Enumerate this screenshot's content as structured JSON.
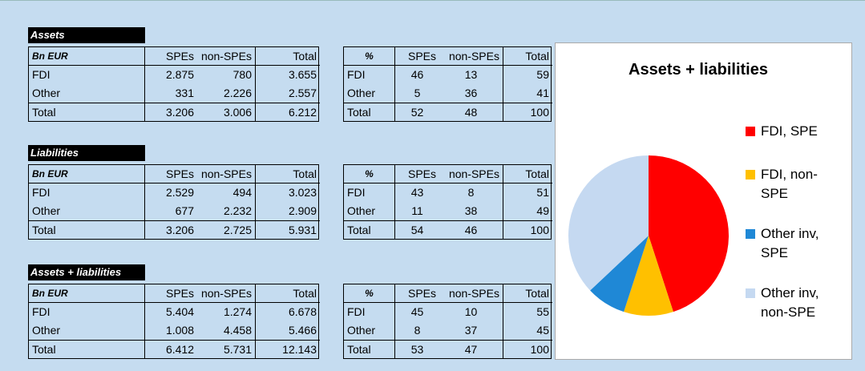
{
  "blocks": [
    {
      "title": "Assets",
      "left": {
        "header": [
          "Bn EUR",
          "SPEs",
          "non-SPEs",
          "Total"
        ],
        "rows": [
          [
            "FDI",
            "2.875",
            "780",
            "3.655"
          ],
          [
            "Other",
            "331",
            "2.226",
            "2.557"
          ],
          [
            "Total",
            "3.206",
            "3.006",
            "6.212"
          ]
        ]
      },
      "right": {
        "header": [
          "%",
          "SPEs",
          "non-SPEs",
          "Total"
        ],
        "rows": [
          [
            "FDI",
            46,
            13,
            59
          ],
          [
            "Other",
            5,
            36,
            41
          ],
          [
            "Total",
            52,
            48,
            100
          ]
        ]
      }
    },
    {
      "title": "Liabilities",
      "left": {
        "header": [
          "Bn EUR",
          "SPEs",
          "non-SPEs",
          "Total"
        ],
        "rows": [
          [
            "FDI",
            "2.529",
            "494",
            "3.023"
          ],
          [
            "Other",
            "677",
            "2.232",
            "2.909"
          ],
          [
            "Total",
            "3.206",
            "2.725",
            "5.931"
          ]
        ]
      },
      "right": {
        "header": [
          "%",
          "SPEs",
          "non-SPEs",
          "Total"
        ],
        "rows": [
          [
            "FDI",
            43,
            8,
            51
          ],
          [
            "Other",
            11,
            38,
            49
          ],
          [
            "Total",
            54,
            46,
            100
          ]
        ]
      }
    },
    {
      "title": "Assets + liabilities",
      "left": {
        "header": [
          "Bn EUR",
          "SPEs",
          "non-SPEs",
          "Total"
        ],
        "rows": [
          [
            "FDI",
            "5.404",
            "1.274",
            "6.678"
          ],
          [
            "Other",
            "1.008",
            "4.458",
            "5.466"
          ],
          [
            "Total",
            "6.412",
            "5.731",
            "12.143"
          ]
        ]
      },
      "right": {
        "header": [
          "%",
          "SPEs",
          "non-SPEs",
          "Total"
        ],
        "rows": [
          [
            "FDI",
            45,
            10,
            55
          ],
          [
            "Other",
            8,
            37,
            45
          ],
          [
            "Total",
            53,
            47,
            100
          ]
        ]
      }
    }
  ],
  "chart_data": {
    "type": "pie",
    "title": "Assets + liabilities",
    "categories": [
      "FDI, SPE",
      "FDI, non-SPE",
      "Other inv, SPE",
      "Other inv, non-SPE"
    ],
    "values": [
      45,
      10,
      8,
      37
    ],
    "colors": [
      "#ff0000",
      "#ffc000",
      "#1f88d6",
      "#c5d9f1"
    ],
    "legend": "right"
  }
}
